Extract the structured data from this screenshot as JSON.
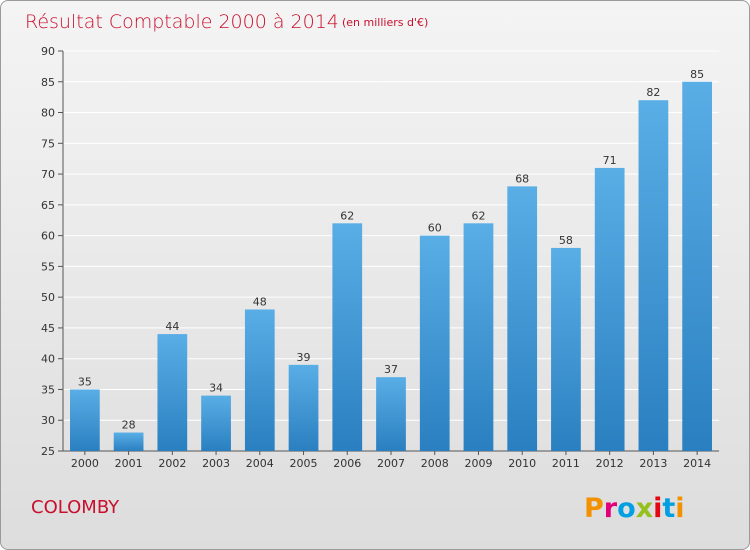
{
  "header": {
    "title": "Résultat Comptable 2000 à 2014",
    "subtitle": "(en milliers d'€)"
  },
  "footer": {
    "commune": "COLOMBY",
    "logo_text": "Proxiti",
    "logo_colors": [
      "#f39200",
      "#e2007a",
      "#00a0e3",
      "#95c11f",
      "#e30613",
      "#009fe3",
      "#f39200"
    ]
  },
  "colors": {
    "title": "#c8102e",
    "bar_top": "#5aaee6",
    "bar_bottom": "#2a7fc0",
    "grid": "#ffffff"
  },
  "chart_data": {
    "type": "bar",
    "title": "Résultat Comptable 2000 à 2014",
    "subtitle": "(en milliers d'€)",
    "categories": [
      "2000",
      "2001",
      "2002",
      "2003",
      "2004",
      "2005",
      "2006",
      "2007",
      "2008",
      "2009",
      "2010",
      "2011",
      "2012",
      "2013",
      "2014"
    ],
    "values": [
      35,
      28,
      44,
      34,
      48,
      39,
      62,
      37,
      60,
      62,
      68,
      58,
      71,
      82,
      85
    ],
    "ylim": [
      25,
      90
    ],
    "yticks": [
      25,
      30,
      35,
      40,
      45,
      50,
      55,
      60,
      65,
      70,
      75,
      80,
      85,
      90
    ],
    "xlabel": "",
    "ylabel": "",
    "grid": true,
    "data_labels": true
  }
}
